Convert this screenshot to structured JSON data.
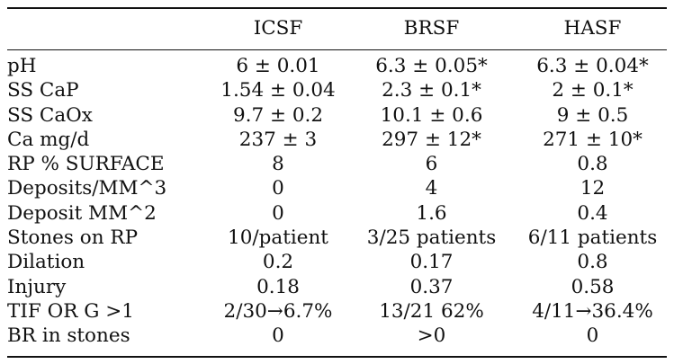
{
  "columns": [
    "",
    "ICSF",
    "BRSF",
    "HASF"
  ],
  "rows": [
    {
      "label": "pH",
      "values": [
        "6 ± 0.01",
        "6.3 ± 0.05*",
        "6.3 ± 0.04*"
      ]
    },
    {
      "label": "SS CaP",
      "values": [
        "1.54 ± 0.04",
        "2.3 ± 0.1*",
        "2 ± 0.1*"
      ]
    },
    {
      "label": "SS CaOx",
      "values": [
        "9.7 ± 0.2",
        "10.1 ± 0.6",
        "9 ± 0.5"
      ]
    },
    {
      "label": "Ca mg/d",
      "values": [
        "237 ± 3",
        "297 ± 12*",
        "271 ± 10*"
      ]
    },
    {
      "label": "RP % SURFACE",
      "values": [
        "8",
        "6",
        "0.8"
      ]
    },
    {
      "label": "Deposits/MM^3",
      "values": [
        "0",
        "4",
        "12"
      ]
    },
    {
      "label": "Deposit MM^2",
      "values": [
        "0",
        "1.6",
        "0.4"
      ]
    },
    {
      "label": "Stones on RP",
      "values": [
        "10/patient",
        "3/25 patients",
        "6/11 patients"
      ]
    },
    {
      "label": "Dilation",
      "values": [
        "0.2",
        "0.17",
        "0.8"
      ]
    },
    {
      "label": "Injury",
      "values": [
        "0.18",
        "0.37",
        "0.58"
      ]
    },
    {
      "label": "TIF OR G >1",
      "values": [
        "2/30→6.7%",
        "13/21 62%",
        "4/11→36.4%"
      ]
    },
    {
      "label": "BR in stones",
      "values": [
        "0",
        ">0",
        "0"
      ]
    }
  ]
}
